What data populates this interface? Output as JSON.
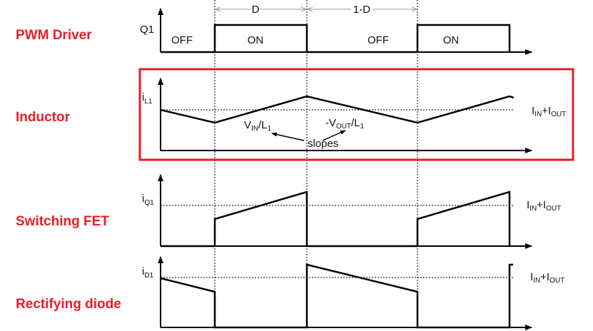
{
  "colors": {
    "section_label": "#ee1c25",
    "highlight_box": "#e31e24",
    "waveform": "#000000"
  },
  "sections": {
    "pwm": "PWM Driver",
    "inductor": "Inductor",
    "fet": "Switching FET",
    "diode": "Rectifying diode"
  },
  "pwm": {
    "axis_label": "Q1",
    "states": [
      "OFF",
      "ON",
      "OFF",
      "ON"
    ],
    "dim_d": "D",
    "dim_1d": "1-D"
  },
  "inductor": {
    "axis_label": {
      "main": "i",
      "sub": "L1"
    },
    "avg_label": {
      "a": "I",
      "a_sub": "IN",
      "plus": "+I",
      "b_sub": "OUT"
    },
    "slope_up": {
      "main": "V",
      "sub": "IN",
      "rest": "/L",
      "sub2": "1"
    },
    "slope_down": {
      "main": "-V",
      "sub": "OUT",
      "rest": "/L",
      "sub2": "1"
    },
    "slopes": "slopes"
  },
  "fet": {
    "axis_label": {
      "main": "i",
      "sub": "Q1"
    },
    "avg_label": {
      "a": "I",
      "a_sub": "IN",
      "plus": "+I",
      "b_sub": "OUT"
    }
  },
  "diode": {
    "axis_label": {
      "main": "i",
      "sub": "D1"
    },
    "avg_label": {
      "a": "I",
      "a_sub": "IN",
      "plus": "+I",
      "b_sub": "OUT"
    }
  }
}
